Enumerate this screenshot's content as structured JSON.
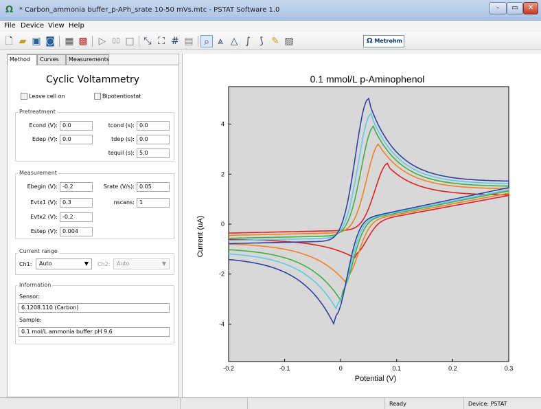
{
  "window": {
    "title": "* Carbon_ammonia buffer_p-APh_srate 10-50 mVs.mtc - PSTAT Software 1.0"
  },
  "menu": [
    "File",
    "Device",
    "View",
    "Help"
  ],
  "toolbar": {
    "icons": [
      "new-icon",
      "open-icon",
      "save-icon",
      "save-as-icon",
      "export-icon",
      "import-icon",
      "play-icon",
      "pause-icon",
      "stop-icon",
      "zoom-fit-icon",
      "fullscreen-icon",
      "grid-icon",
      "legend-icon",
      "zoom-icon",
      "peak-icon",
      "peak-outline-icon",
      "integrate-icon",
      "smooth-icon",
      "clear-icon",
      "device-icon"
    ],
    "metrohm_label": "Metrohm"
  },
  "tabs": [
    "Method",
    "Curves",
    "Measurements"
  ],
  "method": {
    "title": "Cyclic Voltammetry",
    "leave_cell_on": "Leave cell on",
    "bipotentiostat": "Bipotentiostat",
    "pretreatment": {
      "title": "Pretreatment",
      "econd_label": "Econd (V):",
      "econd": "0.0",
      "tcond_label": "tcond (s):",
      "tcond": "0.0",
      "edep_label": "Edep (V):",
      "edep": "0.0",
      "tdep_label": "tdep (s):",
      "tdep": "0.0",
      "tequil_label": "tequil (s):",
      "tequil": "5.0"
    },
    "measurement": {
      "title": "Measurement",
      "ebegin_label": "Ebegin (V):",
      "ebegin": "-0.2",
      "srate_label": "Srate (V/s):",
      "srate": "0.05",
      "evtx1_label": "Evtx1 (V):",
      "evtx1": "0.3",
      "nscans_label": "nscans:",
      "nscans": "1",
      "evtx2_label": "Evtx2 (V):",
      "evtx2": "-0.2",
      "estep_label": "Estep (V):",
      "estep": "0.004"
    },
    "current_range": {
      "title": "Current range",
      "ch1_label": "Ch1:",
      "ch1": "Auto",
      "ch2_label": "Ch2:",
      "ch2": "Auto"
    },
    "information": {
      "title": "Information",
      "sensor_label": "Sensor:",
      "sensor": "6.1208.110 (Carbon)",
      "sample_label": "Sample:",
      "sample": "0.1 mol/L ammonia buffer pH 9.6"
    }
  },
  "status": {
    "ready": "Ready",
    "device": "Device: PSTAT"
  },
  "chart_data": {
    "type": "line",
    "title": "0.1 mmol/L p-Aminophenol",
    "xlabel": "Potential (V)",
    "ylabel": "Current (uA)",
    "xlim": [
      -0.2,
      0.3
    ],
    "ylim": [
      -5.5,
      5.5
    ],
    "xticks": [
      "-0.2",
      "-0.1",
      "0",
      "0.1",
      "0.2",
      "0.3"
    ],
    "yticks": [
      "-4",
      "-2",
      "0",
      "2",
      "4"
    ],
    "grid": false,
    "background": "#d8d8d8",
    "series": [
      {
        "color": "#e02020",
        "ipa": 2.3,
        "epa": 0.085,
        "ipc": -1.35,
        "epc": 0.025,
        "end_fwd": 1.15,
        "end_rev": 1.05,
        "start": -0.6
      },
      {
        "color": "#f08020",
        "ipa": 3.1,
        "epa": 0.07,
        "ipc": -2.35,
        "epc": 0.01,
        "end_fwd": 1.4,
        "end_rev": 1.15,
        "start": -0.75
      },
      {
        "color": "#40b040",
        "ipa": 3.8,
        "epa": 0.06,
        "ipc": -3.05,
        "epc": 0.0,
        "end_fwd": 1.5,
        "end_rev": 1.25,
        "start": -0.95
      },
      {
        "color": "#60c8e8",
        "ipa": 4.3,
        "epa": 0.055,
        "ipc": -3.5,
        "epc": -0.005,
        "end_fwd": 1.6,
        "end_rev": 1.3,
        "start": -1.1
      },
      {
        "color": "#3040a0",
        "ipa": 4.9,
        "epa": 0.05,
        "ipc": -4.1,
        "epc": -0.01,
        "end_fwd": 1.7,
        "end_rev": 1.4,
        "start": -1.3
      }
    ]
  }
}
